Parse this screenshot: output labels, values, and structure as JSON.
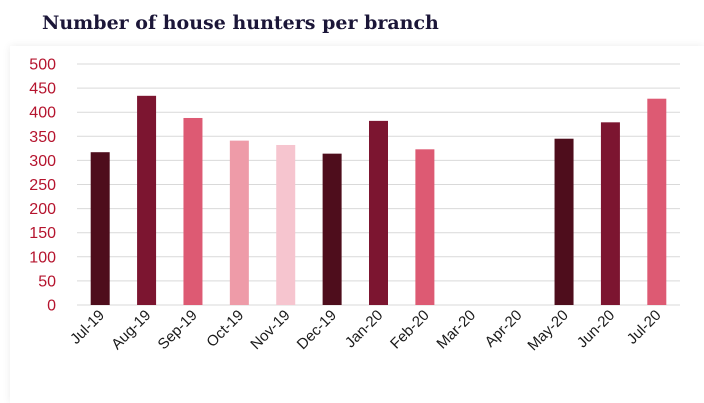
{
  "title": "Number of house hunters per branch",
  "colors": {
    "title": "#1b1638",
    "ytick": "#b5142e",
    "grid": "#d9d9d9",
    "palette": [
      "#4e0d1c",
      "#7c1530",
      "#dd5a73",
      "#ee9ba8",
      "#f6c5cf"
    ]
  },
  "chart_data": {
    "type": "bar",
    "title": "Number of house hunters per branch",
    "categories": [
      "Jul-19",
      "Aug-19",
      "Sep-19",
      "Oct-19",
      "Nov-19",
      "Dec-19",
      "Jan-20",
      "Feb-20",
      "Mar-20",
      "Apr-20",
      "May-20",
      "Jun-20",
      "Jul-20"
    ],
    "values": [
      317,
      434,
      388,
      341,
      332,
      314,
      382,
      323,
      null,
      null,
      345,
      379,
      428
    ],
    "bar_colors": [
      "#4e0d1c",
      "#7c1530",
      "#dd5a73",
      "#ee9ba8",
      "#f6c5cf",
      "#4e0d1c",
      "#7c1530",
      "#dd5a73",
      null,
      null,
      "#4e0d1c",
      "#7c1530",
      "#dd5a73"
    ],
    "ylim": [
      0,
      500
    ],
    "yticks": [
      0,
      50,
      100,
      150,
      200,
      250,
      300,
      350,
      400,
      450,
      500
    ],
    "grid": true,
    "xlabel": "",
    "ylabel": ""
  }
}
